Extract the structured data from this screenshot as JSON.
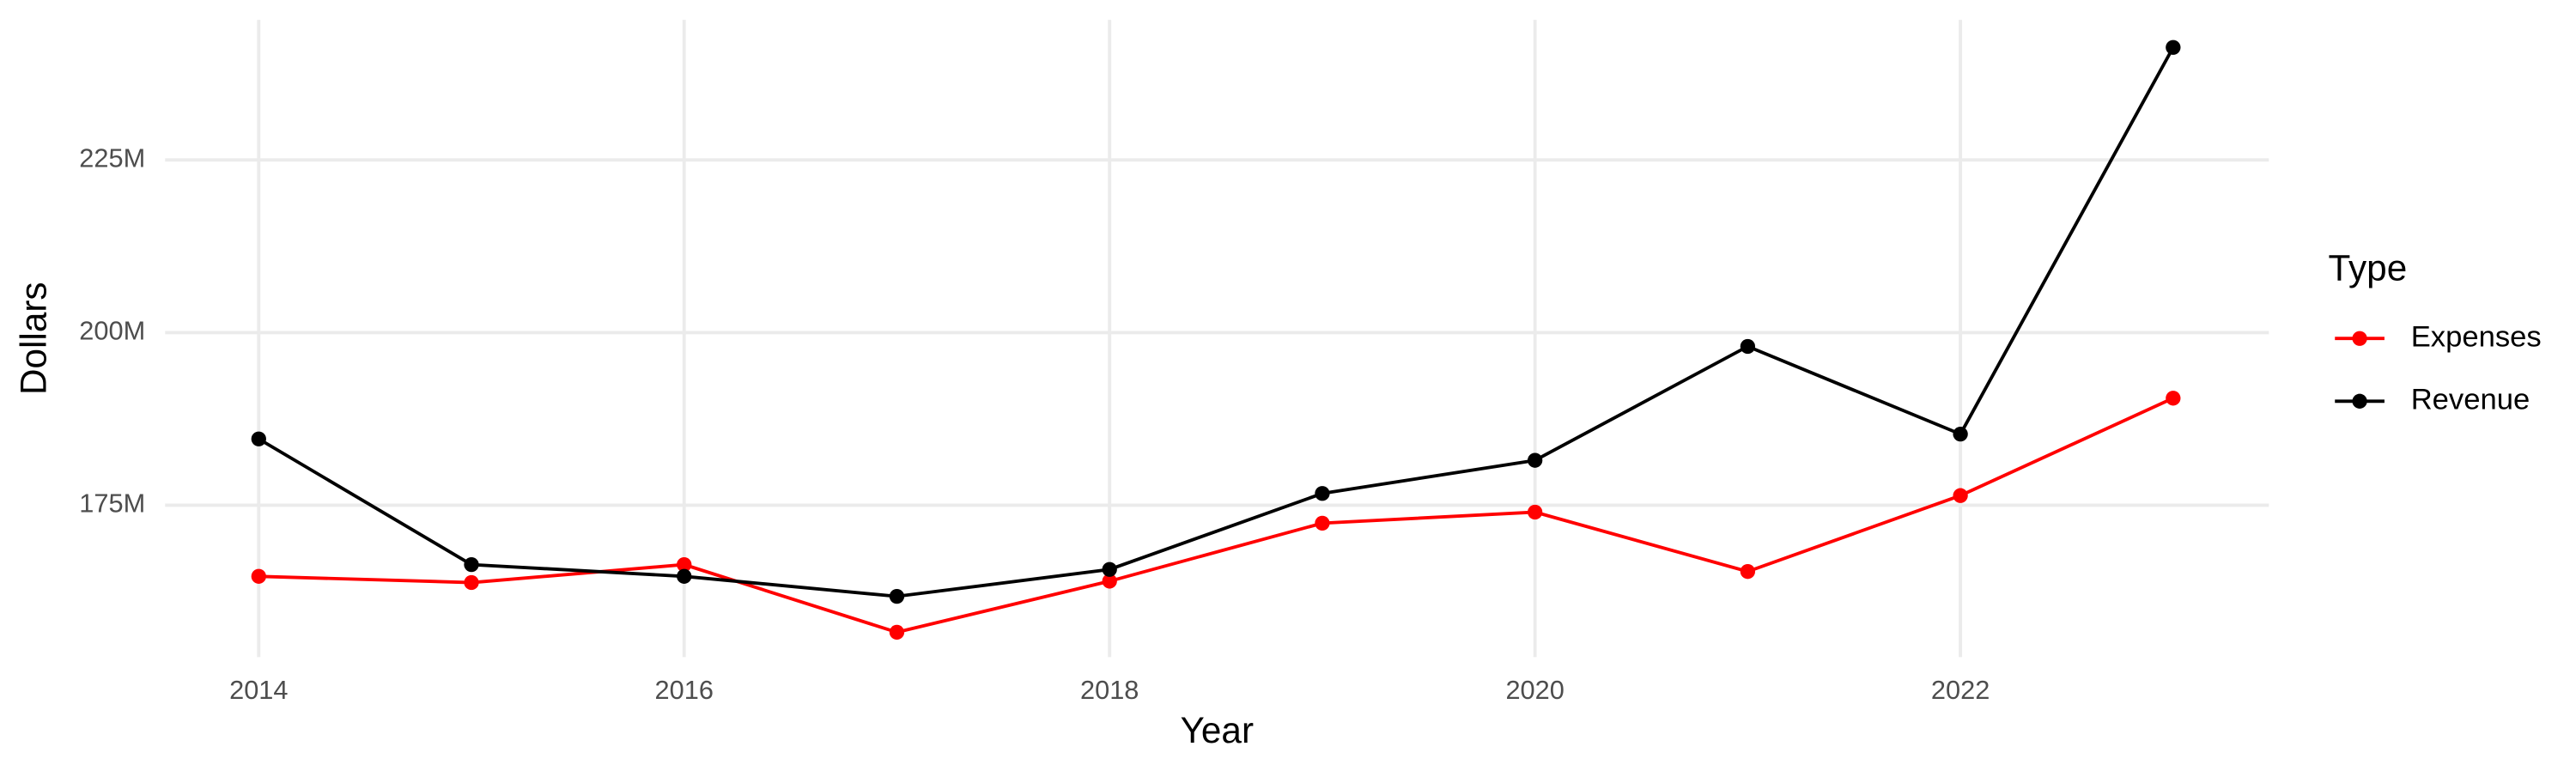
{
  "chart_data": {
    "type": "line",
    "x_label": "Year",
    "y_label": "Dollars",
    "legend_title": "Type",
    "x": [
      2014,
      2015,
      2016,
      2017,
      2018,
      2019,
      2020,
      2021,
      2022,
      2023
    ],
    "series": [
      {
        "name": "Expenses",
        "color": "#ff0000",
        "values": [
          164700000,
          163800000,
          166400000,
          156600000,
          164000000,
          172400000,
          174000000,
          165400000,
          176400000,
          190500000
        ]
      },
      {
        "name": "Revenue",
        "color": "#000000",
        "values": [
          184600000,
          166400000,
          164700000,
          161800000,
          165700000,
          176700000,
          181500000,
          198000000,
          185300000,
          241300000
        ]
      }
    ],
    "xlim": [
      2013.56,
      2023.45
    ],
    "xticks": [
      2014,
      2016,
      2018,
      2020,
      2022
    ],
    "ylim": [
      153000000,
      245300000
    ],
    "yticks": [
      {
        "value": 175000000,
        "label": "175M"
      },
      {
        "value": 200000000,
        "label": "200M"
      },
      {
        "value": 225000000,
        "label": "225M"
      }
    ],
    "grid": true,
    "legend": "right"
  }
}
